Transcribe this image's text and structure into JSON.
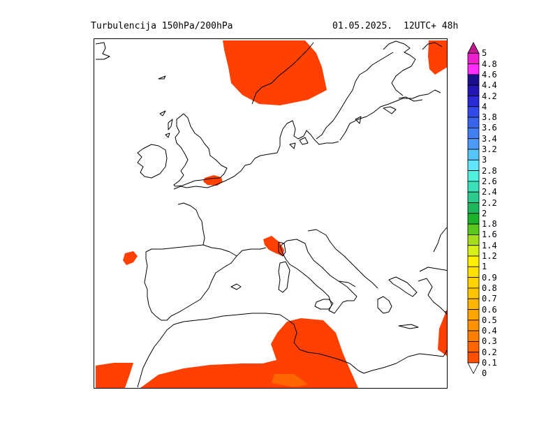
{
  "header": {
    "title": "Turbulencija 150hPa/200hPa",
    "date": "01.05.2025.",
    "run": "12UTC+ 48h"
  },
  "map": {
    "region": "Europe / Mediterranean",
    "coastline_color": "#000000",
    "turbulence_color": "#ff4000"
  },
  "legend": {
    "levels": [
      "5",
      "4.8",
      "4.6",
      "4.4",
      "4.2",
      "4",
      "3.8",
      "3.6",
      "3.4",
      "3.2",
      "3",
      "2.8",
      "2.6",
      "2.4",
      "2.2",
      "2",
      "1.8",
      "1.6",
      "1.4",
      "1.2",
      "1",
      "0.9",
      "0.8",
      "0.7",
      "0.6",
      "0.5",
      "0.4",
      "0.3",
      "0.2",
      "0.1",
      "0"
    ],
    "colors": [
      "#c1188f",
      "#ee1dce",
      "#ff2cff",
      "#1c0f8d",
      "#2316b5",
      "#2a2ad6",
      "#3349ea",
      "#3a63ec",
      "#417ff2",
      "#4c9af6",
      "#55c4f7",
      "#60e5fb",
      "#4ff0dc",
      "#39e0b8",
      "#2acb8c",
      "#1ab75d",
      "#1cb22c",
      "#5ac81f",
      "#a5dc1c",
      "#d8f01a",
      "#fff000",
      "#ffe100",
      "#ffd200",
      "#ffc400",
      "#ffb400",
      "#ffa400",
      "#ff9200",
      "#ff7d00",
      "#ff6600",
      "#ff4f00"
    ]
  }
}
